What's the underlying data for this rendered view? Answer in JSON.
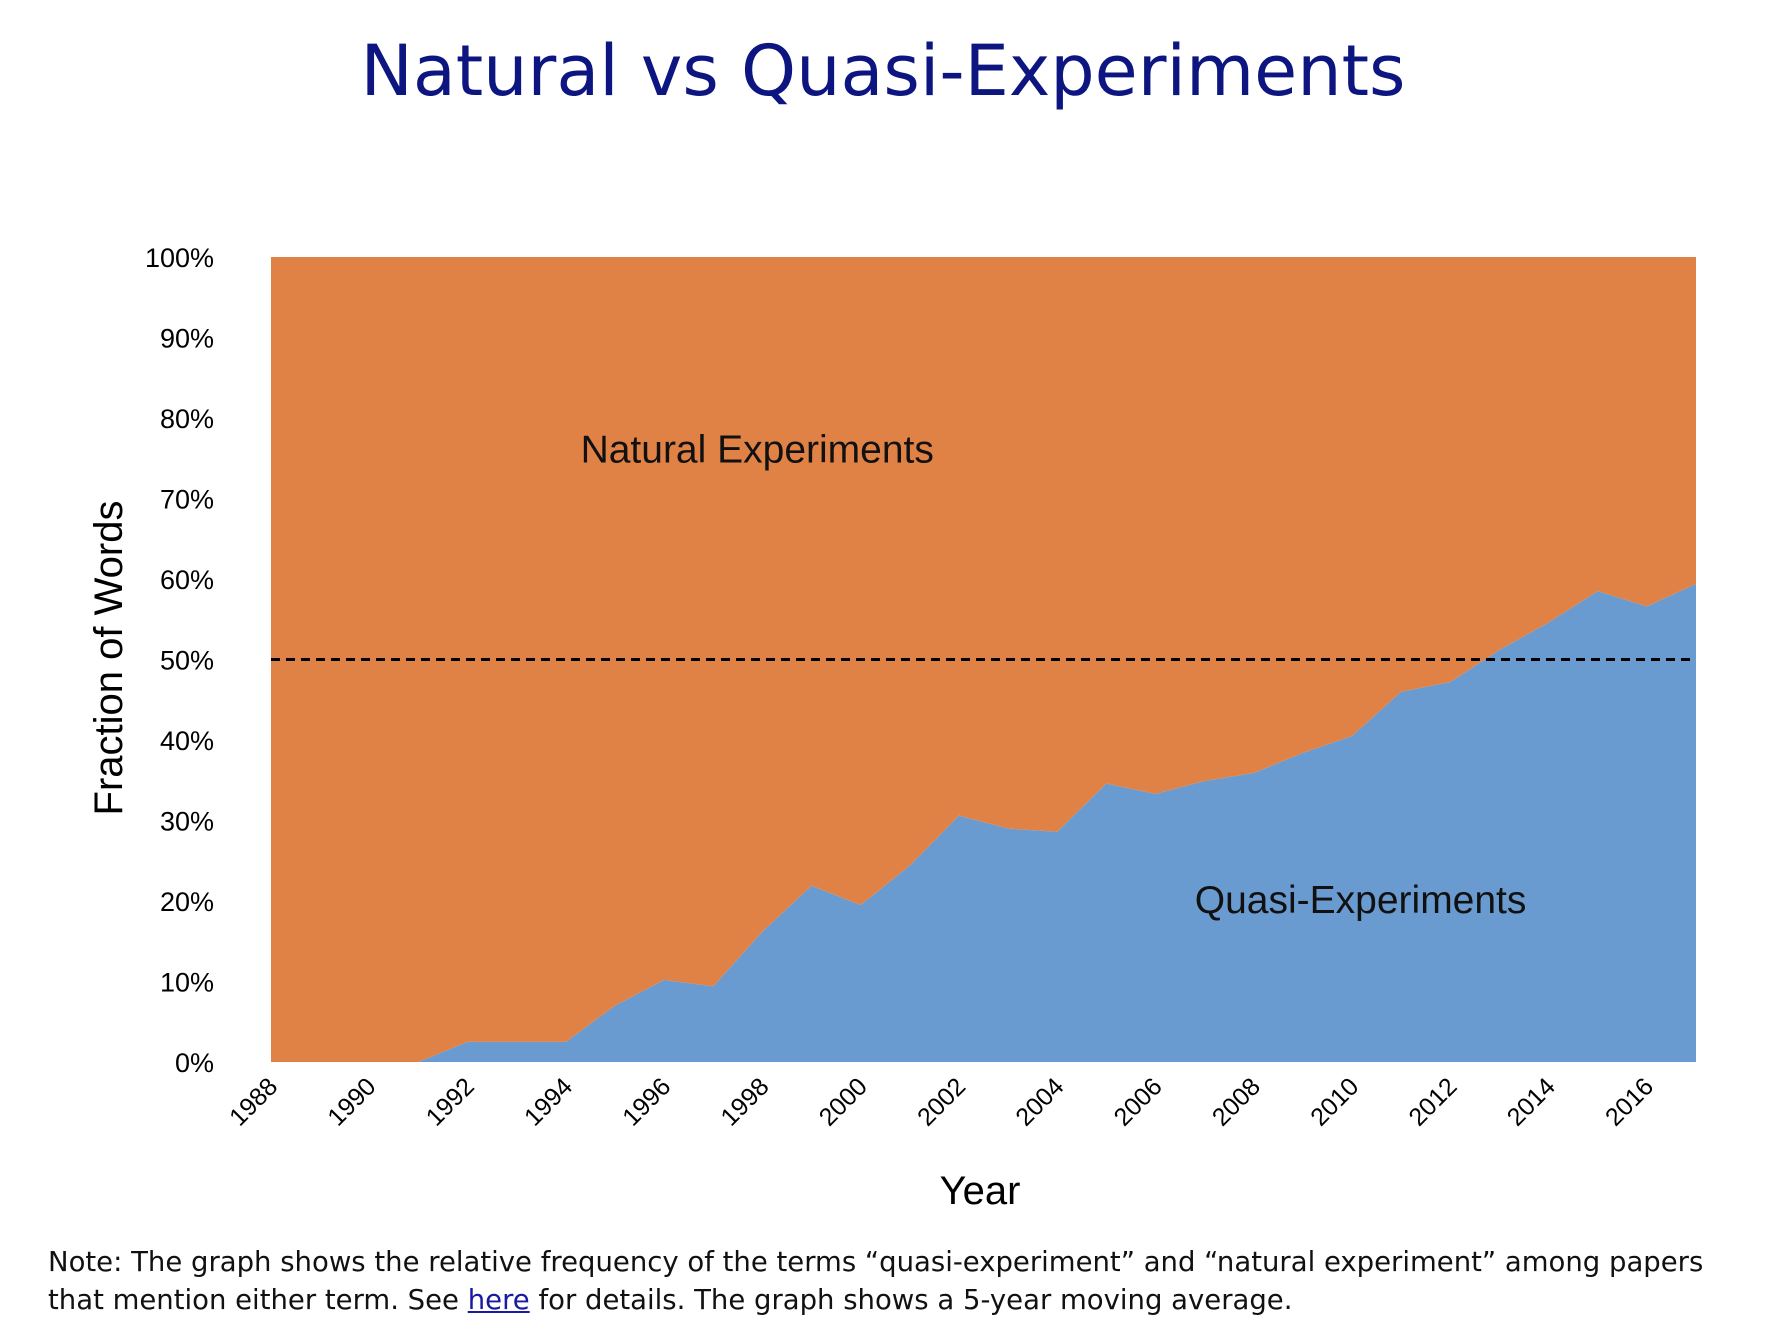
{
  "slide": {
    "title": "Natural vs Quasi-Experiments"
  },
  "chart_data": {
    "type": "area",
    "stacked": "percent",
    "title": "",
    "xlabel": "Year",
    "ylabel": "Fraction of Words",
    "ylim": [
      0,
      100
    ],
    "y_ticks": [
      "0%",
      "10%",
      "20%",
      "30%",
      "40%",
      "50%",
      "60%",
      "70%",
      "80%",
      "90%",
      "100%"
    ],
    "x_ticks": [
      "1988",
      "1990",
      "1992",
      "1994",
      "1996",
      "1998",
      "2000",
      "2002",
      "2004",
      "2006",
      "2008",
      "2010",
      "2012",
      "2014",
      "2016"
    ],
    "x": [
      1988,
      1989,
      1990,
      1991,
      1992,
      1993,
      1994,
      1995,
      1996,
      1997,
      1998,
      1999,
      2000,
      2001,
      2002,
      2003,
      2004,
      2005,
      2006,
      2007,
      2008,
      2009,
      2010,
      2011,
      2012,
      2013,
      2014,
      2015,
      2016,
      2017
    ],
    "series": [
      {
        "values": [
          0,
          0,
          0,
          0,
          2.5,
          2.5,
          2.5,
          7,
          10.2,
          9.4,
          16.2,
          21.9,
          19.5,
          24.4,
          30.6,
          29,
          28.6,
          34.6,
          33.3,
          34.9,
          35.9,
          38.4,
          40.5,
          46,
          47.2,
          51.2,
          54.6,
          58.5,
          56.6,
          59.4
        ],
        "color": "#6a9bd0"
      },
      {
        "values": [
          100,
          100,
          100,
          100,
          97.5,
          97.5,
          97.5,
          93,
          89.8,
          90.6,
          83.8,
          78.1,
          80.5,
          75.6,
          69.4,
          71,
          71.4,
          65.4,
          66.7,
          65.1,
          64.1,
          61.6,
          59.5,
          54,
          52.8,
          48.8,
          45.4,
          41.5,
          43.4,
          40.6
        ],
        "color": "#e08246"
      }
    ],
    "annotations": [
      {
        "text": "Natural Experiments",
        "x": 1994.3,
        "y": 74.5
      },
      {
        "text": "Quasi-Experiments",
        "x": 2006.8,
        "y": 18.5
      }
    ],
    "reference_line": {
      "y": 50,
      "style": "dashed",
      "color": "#000000"
    },
    "grid": false,
    "legend": "none"
  },
  "note": {
    "before_link": "Note: The graph shows the relative frequency of the terms “quasi-experiment” and “natural experiment” among papers that mention either term. See ",
    "link_text": "here",
    "after_link": " for details. The graph shows a 5-year moving average."
  }
}
